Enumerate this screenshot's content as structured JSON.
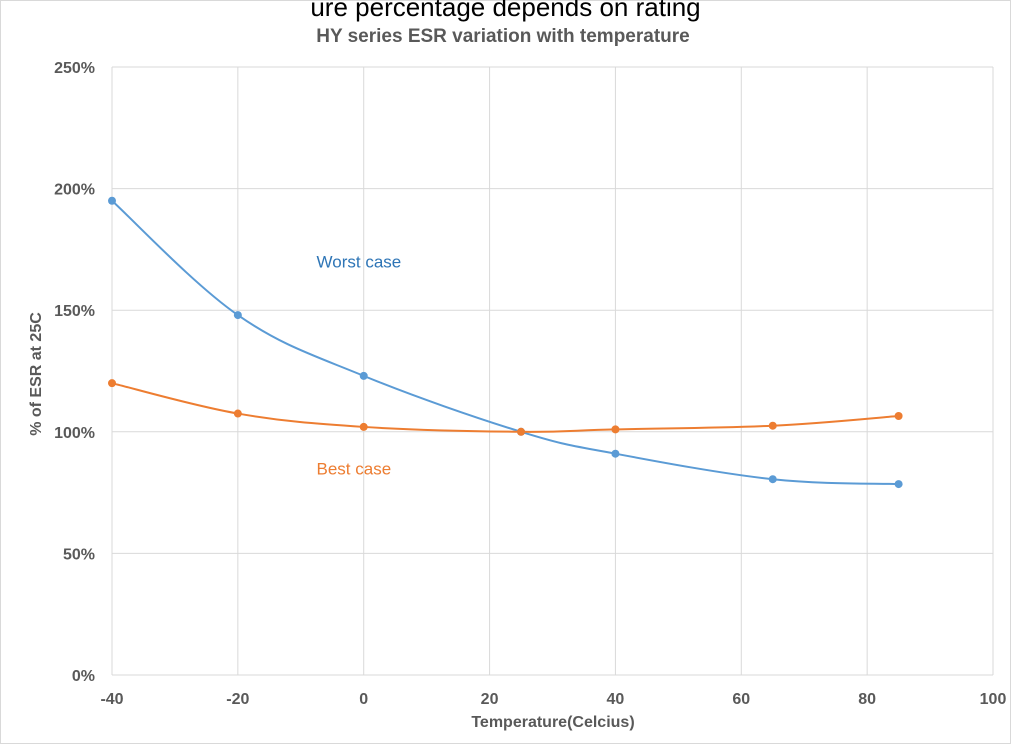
{
  "header_caption": "ure percentage depends on rating",
  "chart_data": {
    "type": "line",
    "title": "HY series ESR variation with temperature",
    "xlabel": "Temperature(Celcius)",
    "ylabel": "% of ESR at 25C",
    "xlim": [
      -40,
      100
    ],
    "ylim": [
      0,
      250
    ],
    "x_ticks": [
      "-40",
      "-20",
      "0",
      "20",
      "40",
      "60",
      "80",
      "100"
    ],
    "y_ticks": [
      "0%",
      "50%",
      "100%",
      "150%",
      "200%",
      "250%"
    ],
    "grid": true,
    "smooth": true,
    "series": [
      {
        "name": "Worst case",
        "color": "#5b9bd5",
        "x": [
          -40,
          -20,
          0,
          25,
          40,
          65,
          85
        ],
        "y": [
          195,
          148,
          123,
          100,
          91,
          80.5,
          78.5
        ]
      },
      {
        "name": "Best case",
        "color": "#ed7d31",
        "x": [
          -40,
          -20,
          0,
          25,
          40,
          65,
          85
        ],
        "y": [
          120,
          107.5,
          102,
          100,
          101,
          102.5,
          106.5
        ]
      }
    ],
    "annotations": [
      {
        "text": "Worst case",
        "color": "#2e75b6",
        "x": -7.5,
        "y": 170
      },
      {
        "text": "Best case",
        "color": "#ed7d31",
        "x": -7.5,
        "y": 85
      }
    ]
  }
}
